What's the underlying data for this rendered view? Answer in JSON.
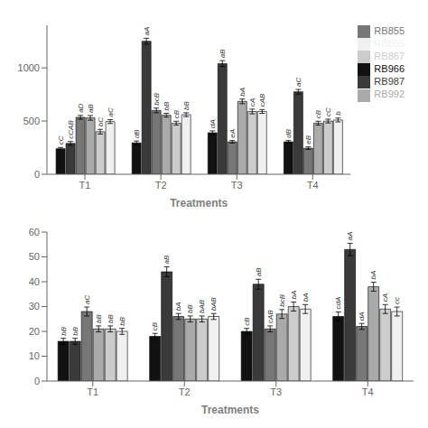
{
  "chart_data": [
    {
      "type": "bar",
      "xlabel": "Treatments",
      "categories": [
        "T1",
        "T2",
        "T3",
        "T4"
      ],
      "series": [
        {
          "name": "RB966",
          "color": "#111111",
          "values": [
            240,
            295,
            390,
            305
          ],
          "errors": [
            12,
            18,
            18,
            12
          ],
          "annotations": [
            "cC",
            "dB",
            "dA",
            "dB"
          ]
        },
        {
          "name": "RB987",
          "color": "#3a3a3a",
          "values": [
            290,
            1250,
            1040,
            775
          ],
          "errors": [
            18,
            28,
            28,
            22
          ],
          "annotations": [
            "cCAB",
            "aA",
            "aB",
            "aC"
          ]
        },
        {
          "name": "RB855",
          "color": "#777777",
          "values": [
            535,
            600,
            305,
            245
          ],
          "errors": [
            18,
            22,
            12,
            12
          ],
          "annotations": [
            "aD",
            "bcB",
            "eA",
            "eB"
          ]
        },
        {
          "name": "RB992",
          "color": "#aaaaaa",
          "values": [
            530,
            555,
            685,
            480
          ],
          "errors": [
            22,
            18,
            22,
            18
          ],
          "annotations": [
            "aB",
            "bB",
            "bA",
            "cB"
          ]
        },
        {
          "name": "RB867",
          "color": "#cccccc",
          "values": [
            400,
            480,
            590,
            500
          ],
          "errors": [
            22,
            18,
            22,
            18
          ],
          "annotations": [
            "bC",
            "cB",
            "cA",
            "cC"
          ]
        },
        {
          "name": "RB855",
          "color": "#f0f0f0",
          "values": [
            495,
            560,
            590,
            510
          ],
          "errors": [
            18,
            18,
            18,
            18
          ],
          "annotations": [
            "aC",
            "bB",
            "cAB",
            "b"
          ]
        }
      ],
      "ylim": [
        0,
        1400
      ],
      "yticks": [
        0,
        500,
        1000
      ],
      "legend": "right"
    },
    {
      "type": "bar",
      "xlabel": "Treatments",
      "categories": [
        "T1",
        "T2",
        "T3",
        "T4"
      ],
      "series": [
        {
          "name": "RB966",
          "color": "#111111",
          "values": [
            16,
            18,
            20,
            26
          ],
          "errors": [
            1.2,
            1.2,
            1.2,
            1.8
          ],
          "annotations": [
            "bB",
            "cB",
            "cB",
            "cdA"
          ]
        },
        {
          "name": "RB987",
          "color": "#3a3a3a",
          "values": [
            16,
            44,
            39,
            53
          ],
          "errors": [
            1.2,
            2.0,
            2.0,
            2.5
          ],
          "annotations": [
            "bB",
            "aB",
            "aB",
            "aA"
          ]
        },
        {
          "name": "RB855",
          "color": "#777777",
          "values": [
            28,
            26,
            21,
            22
          ],
          "errors": [
            1.8,
            1.2,
            1.2,
            1.2
          ],
          "annotations": [
            "aC",
            "bA",
            "cAB",
            "dA"
          ]
        },
        {
          "name": "RB992",
          "color": "#aaaaaa",
          "values": [
            21,
            25,
            27,
            38
          ],
          "errors": [
            1.2,
            1.2,
            1.8,
            1.8
          ],
          "annotations": [
            "bB",
            "bB",
            "bcB",
            "bA"
          ]
        },
        {
          "name": "RB867",
          "color": "#cccccc",
          "values": [
            21,
            25,
            30,
            29
          ],
          "errors": [
            1.2,
            1.2,
            1.8,
            1.8
          ],
          "annotations": [
            "bB",
            "bAB",
            "bA",
            "cA"
          ]
        },
        {
          "name": "RB855",
          "color": "#f0f0f0",
          "values": [
            20,
            26,
            29,
            28
          ],
          "errors": [
            1.2,
            1.2,
            1.8,
            1.8
          ],
          "annotations": [
            "bB",
            "bAB",
            "bA",
            "cc"
          ]
        }
      ],
      "ylim": [
        0,
        60
      ],
      "yticks": [
        0,
        10,
        20,
        30,
        40,
        50,
        60
      ]
    }
  ]
}
